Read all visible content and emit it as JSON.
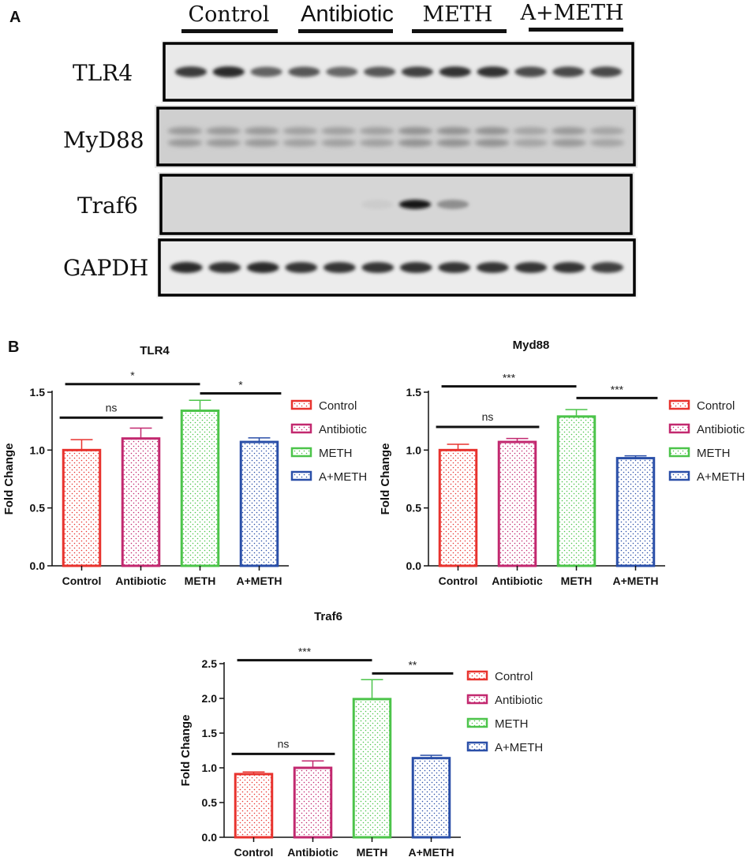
{
  "panel_a": {
    "letter": "A",
    "groups": [
      "Control",
      "Antibiotic",
      "METH",
      "A+METH"
    ],
    "blots": [
      {
        "name": "TLR4",
        "intensity": [
          0.78,
          0.85,
          0.6,
          0.65,
          0.58,
          0.65,
          0.75,
          0.82,
          0.82,
          0.7,
          0.72,
          0.72
        ]
      },
      {
        "name": "MyD88",
        "intensity": [
          0.35,
          0.35,
          0.35,
          0.32,
          0.32,
          0.32,
          0.38,
          0.38,
          0.38,
          0.3,
          0.35,
          0.3
        ]
      },
      {
        "name": "Traf6",
        "intensity": [
          0,
          0,
          0,
          0,
          0,
          0.12,
          0.95,
          0.4,
          0,
          0,
          0,
          0
        ]
      },
      {
        "name": "GAPDH",
        "intensity": [
          0.85,
          0.82,
          0.85,
          0.8,
          0.8,
          0.8,
          0.82,
          0.8,
          0.8,
          0.8,
          0.8,
          0.75
        ]
      }
    ]
  },
  "panel_b": {
    "letter": "B"
  },
  "chart_data": [
    {
      "type": "bar",
      "title": "TLR4",
      "ylabel": "Fold Change",
      "xlabel": "",
      "categories": [
        "Control",
        "Antibiotic",
        "METH",
        "A+METH"
      ],
      "values": [
        1.0,
        1.1,
        1.34,
        1.07
      ],
      "errors": [
        0.09,
        0.09,
        0.09,
        0.035
      ],
      "ylim": [
        0,
        1.5
      ],
      "yticks": [
        "0.0",
        "0.5",
        "1.0",
        "1.5"
      ],
      "colors": [
        "#e8332e",
        "#c2286f",
        "#4cc44a",
        "#2a4fa8"
      ],
      "legend": [
        "Control",
        "Antibiotic",
        "METH",
        "A+METH"
      ],
      "legend_position": "right",
      "comparisons": [
        {
          "from": 0,
          "to": 1,
          "label": "ns",
          "level": 1.28
        },
        {
          "from": 0,
          "to": 2,
          "label": "*",
          "level": 1.57
        },
        {
          "from": 2,
          "to": 3,
          "label": "*",
          "level": 1.49
        }
      ]
    },
    {
      "type": "bar",
      "title": "Myd88",
      "ylabel": "Fold Change",
      "xlabel": "",
      "categories": [
        "Control",
        "Antibiotic",
        "METH",
        "A+METH"
      ],
      "values": [
        1.0,
        1.07,
        1.29,
        0.93
      ],
      "errors": [
        0.05,
        0.03,
        0.06,
        0.02
      ],
      "ylim": [
        0,
        1.5
      ],
      "yticks": [
        "0.0",
        "0.5",
        "1.0",
        "1.5"
      ],
      "colors": [
        "#e8332e",
        "#c2286f",
        "#4cc44a",
        "#2a4fa8"
      ],
      "legend": [
        "Control",
        "Antibiotic",
        "METH",
        "A+METH"
      ],
      "legend_position": "right",
      "comparisons": [
        {
          "from": 0,
          "to": 1,
          "label": "ns",
          "level": 1.2
        },
        {
          "from": 0,
          "to": 2,
          "label": "***",
          "level": 1.55
        },
        {
          "from": 2,
          "to": 3,
          "label": "***",
          "level": 1.45
        }
      ]
    },
    {
      "type": "bar",
      "title": "Traf6",
      "ylabel": "Fold Change",
      "xlabel": "",
      "categories": [
        "Control",
        "Antibiotic",
        "METH",
        "A+METH"
      ],
      "values": [
        0.91,
        1.0,
        1.99,
        1.14
      ],
      "errors": [
        0.03,
        0.1,
        0.28,
        0.04
      ],
      "ylim": [
        0,
        2.5
      ],
      "yticks": [
        "0.0",
        "0.5",
        "1.0",
        "1.5",
        "2.0",
        "2.5"
      ],
      "colors": [
        "#e8332e",
        "#c2286f",
        "#4cc44a",
        "#2a4fa8"
      ],
      "legend": [
        "Control",
        "Antibiotic",
        "METH",
        "A+METH"
      ],
      "legend_position": "right",
      "comparisons": [
        {
          "from": 0,
          "to": 1,
          "label": "ns",
          "level": 1.2
        },
        {
          "from": 0,
          "to": 2,
          "label": "***",
          "level": 2.55
        },
        {
          "from": 2,
          "to": 3,
          "label": "**",
          "level": 2.36
        }
      ]
    }
  ]
}
